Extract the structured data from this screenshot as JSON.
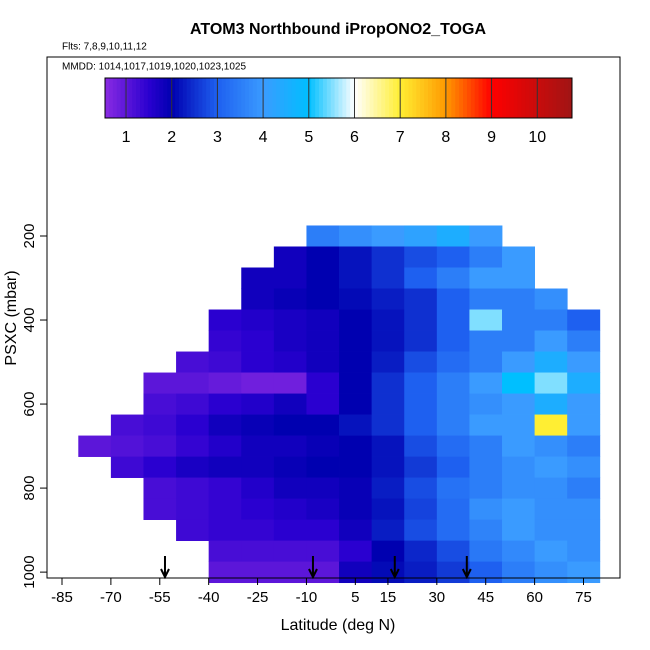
{
  "chart_data": {
    "type": "heatmap",
    "title": "ATOM3 Northbound iPropONO2_TOGA",
    "subtitle": "Flts: 7,8,9,10,11,12",
    "annotation": "MMDD: 1014,1017,1019,1020,1023,1025",
    "xlabel": "Latitude (deg N)",
    "ylabel": "PSXC (mbar)",
    "x_edges": [
      -80,
      -70,
      -60,
      -50,
      -40,
      -30,
      -20,
      -10,
      0,
      10,
      20,
      30,
      40,
      50,
      60,
      70,
      80
    ],
    "y": [
      200,
      250,
      300,
      350,
      400,
      450,
      500,
      550,
      600,
      650,
      700,
      750,
      800,
      850,
      900,
      950,
      1000
    ],
    "y_halfwidth": 25,
    "z": [
      [
        null,
        null,
        null,
        null,
        null,
        null,
        null,
        3.5,
        3.8,
        4,
        4.2,
        4.5,
        4,
        null,
        null,
        null
      ],
      [
        null,
        null,
        null,
        null,
        null,
        null,
        1.8,
        2,
        2.2,
        2.5,
        2.8,
        3,
        3.5,
        4,
        null,
        null
      ],
      [
        null,
        null,
        null,
        null,
        null,
        1.8,
        1.8,
        2,
        2.2,
        2.5,
        3,
        3.5,
        4,
        4,
        null,
        null
      ],
      [
        null,
        null,
        null,
        null,
        null,
        1.8,
        1.9,
        2,
        2.1,
        2.3,
        2.5,
        3,
        3.5,
        3.5,
        3.8,
        null
      ],
      [
        null,
        null,
        null,
        null,
        1.5,
        1.6,
        1.7,
        1.8,
        2,
        2.2,
        2.5,
        3,
        5.5,
        3.5,
        3.5,
        3
      ],
      [
        null,
        null,
        null,
        null,
        1.4,
        1.5,
        1.7,
        1.8,
        2,
        2.2,
        2.5,
        3,
        3.5,
        3.5,
        4,
        3.5
      ],
      [
        null,
        null,
        null,
        1.2,
        1.3,
        1.5,
        1.6,
        1.8,
        2,
        2.3,
        2.8,
        3.2,
        3.5,
        4,
        4.5,
        4
      ],
      [
        null,
        null,
        1,
        1,
        0.9,
        0.8,
        0.8,
        1.5,
        2,
        2.5,
        3,
        3.5,
        4,
        5,
        5.5,
        4.5
      ],
      [
        null,
        null,
        1.2,
        1.3,
        1.5,
        1.6,
        1.8,
        1.5,
        2,
        2.5,
        3,
        3.5,
        3.8,
        4,
        4.5,
        4
      ],
      [
        null,
        1.2,
        1.3,
        1.5,
        1.8,
        1.9,
        2,
        2,
        2.2,
        2.5,
        3,
        3.5,
        4,
        4,
        7,
        4
      ],
      [
        1,
        1.1,
        1.2,
        1.4,
        1.6,
        1.8,
        1.8,
        1.9,
        2,
        2.2,
        2.8,
        3.2,
        3.5,
        4,
        3.8,
        3.5
      ],
      [
        null,
        1.3,
        1.5,
        1.7,
        1.8,
        1.8,
        1.9,
        2,
        2,
        2.2,
        2.6,
        3,
        3.5,
        3.8,
        4,
        3.8
      ],
      [
        null,
        null,
        1.2,
        1.3,
        1.4,
        1.6,
        1.8,
        1.8,
        1.9,
        2.3,
        2.8,
        3.3,
        3.5,
        3.8,
        3.8,
        3.5
      ],
      [
        null,
        null,
        1.2,
        1.3,
        1.4,
        1.5,
        1.6,
        1.7,
        1.9,
        2.2,
        2.7,
        3.2,
        3.8,
        4,
        3.8,
        3.8
      ],
      [
        null,
        null,
        null,
        1.3,
        1.4,
        1.4,
        1.5,
        1.5,
        1.8,
        2.3,
        2.8,
        3.2,
        3.6,
        4,
        3.8,
        3.8
      ],
      [
        null,
        null,
        null,
        null,
        1.2,
        1.2,
        1.2,
        1.2,
        1.5,
        2,
        2.4,
        2.8,
        3.4,
        3.7,
        4,
        3.8
      ],
      [
        null,
        null,
        null,
        null,
        1,
        1,
        1,
        1,
        1.8,
        2.1,
        2.3,
        2.6,
        3,
        3.5,
        3.8,
        4
      ]
    ],
    "markers_lat": [
      -53.4,
      -8,
      17.1,
      39.2
    ],
    "xlim": [
      -89.6,
      86.2
    ],
    "xticks": [
      -85,
      -70,
      -55,
      -40,
      -25,
      -10,
      5,
      15,
      30,
      45,
      60,
      75
    ],
    "ylim": [
      1014,
      -226
    ],
    "yticks": [
      200,
      400,
      600,
      800,
      1000
    ],
    "clim": [
      0.54,
      10.76
    ],
    "cticks": [
      1,
      2,
      3,
      4,
      5,
      6,
      7,
      8,
      9,
      10
    ],
    "colormap": [
      [
        0.54,
        "#8a2be2"
      ],
      [
        1.5,
        "#2a00d0"
      ],
      [
        2,
        "#0000b0"
      ],
      [
        3,
        "#1e60f0"
      ],
      [
        4,
        "#3a9bff"
      ],
      [
        5,
        "#00bfff"
      ],
      [
        6,
        "#ffffff"
      ],
      [
        7,
        "#ffee33"
      ],
      [
        8,
        "#ff9900"
      ],
      [
        9,
        "#ff0000"
      ],
      [
        10.76,
        "#a01515"
      ]
    ]
  }
}
